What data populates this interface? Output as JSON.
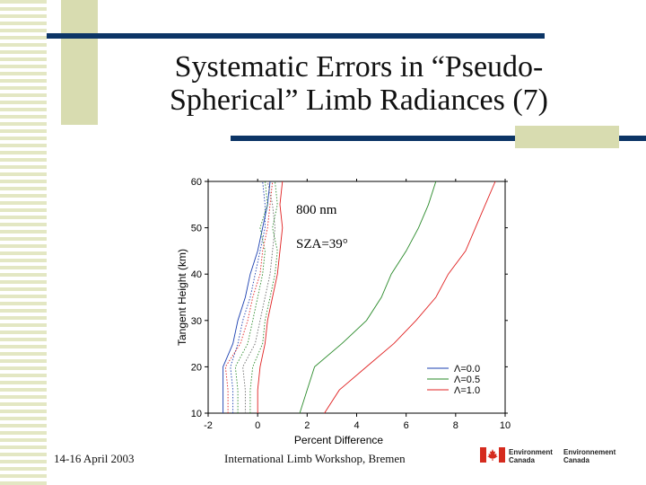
{
  "slide": {
    "title_line1": "Systematic Errors in “Pseudo-",
    "title_line2": "Spherical” Limb Radiances (7)",
    "date": "14-16 April 2003",
    "event": "International Limb Workshop, Bremen",
    "logo": {
      "en_line1": "Environment",
      "en_line2": "Canada",
      "fr_line1": "Environnement",
      "fr_line2": "Canada"
    }
  },
  "colors": {
    "bar": "#0c3566",
    "stripe": "#e3e7c3",
    "accent_block": "#d8dcb0"
  },
  "chart_data": {
    "type": "line",
    "xlabel": "Percent Difference",
    "ylabel": "Tangent Height (km)",
    "xlim": [
      -2,
      10
    ],
    "ylim": [
      10,
      60
    ],
    "xticks": [
      -2,
      0,
      2,
      4,
      6,
      8,
      10
    ],
    "yticks": [
      10,
      20,
      30,
      40,
      50,
      60
    ],
    "annotations": [
      "800 nm",
      "SZA=39°"
    ],
    "legend_position": "bottom-right",
    "series": [
      {
        "name": "Λ=0.0",
        "color": "#1a3fb0",
        "style": "solid",
        "points": [
          [
            -1.4,
            10
          ],
          [
            -1.4,
            20
          ],
          [
            -1.0,
            25
          ],
          [
            -0.8,
            30
          ],
          [
            -0.5,
            35
          ],
          [
            -0.3,
            40
          ],
          [
            0.0,
            45
          ],
          [
            0.2,
            50
          ],
          [
            0.4,
            55
          ],
          [
            0.5,
            60
          ]
        ]
      },
      {
        "name": "Λ=0.5",
        "color": "#2a8a2a",
        "style": "solid",
        "points": [
          [
            1.7,
            10
          ],
          [
            2.0,
            15
          ],
          [
            2.3,
            20
          ],
          [
            3.4,
            25
          ],
          [
            4.4,
            30
          ],
          [
            5.0,
            35
          ],
          [
            5.4,
            40
          ],
          [
            6.0,
            45
          ],
          [
            6.5,
            50
          ],
          [
            6.9,
            55
          ],
          [
            7.2,
            60
          ]
        ]
      },
      {
        "name": "Λ=1.0",
        "color": "#e02020",
        "style": "solid",
        "points": [
          [
            2.7,
            10
          ],
          [
            3.3,
            15
          ],
          [
            4.4,
            20
          ],
          [
            5.5,
            25
          ],
          [
            6.4,
            30
          ],
          [
            7.2,
            35
          ],
          [
            7.7,
            40
          ],
          [
            8.4,
            45
          ],
          [
            8.8,
            50
          ],
          [
            9.2,
            55
          ],
          [
            9.6,
            60
          ]
        ]
      },
      {
        "color": "#1a3fb0",
        "style": "dotted",
        "points": [
          [
            -1.0,
            10
          ],
          [
            -1.0,
            15
          ],
          [
            -1.1,
            20
          ],
          [
            -0.8,
            25
          ],
          [
            -0.6,
            30
          ],
          [
            -0.3,
            35
          ],
          [
            -0.1,
            40
          ],
          [
            0.1,
            45
          ],
          [
            0.3,
            50
          ],
          [
            0.3,
            55
          ],
          [
            0.2,
            60
          ]
        ]
      },
      {
        "color": "#2a8a2a",
        "style": "dotted",
        "points": [
          [
            -0.8,
            10
          ],
          [
            -0.8,
            15
          ],
          [
            -0.9,
            20
          ],
          [
            -0.4,
            25
          ],
          [
            -0.2,
            30
          ],
          [
            0.0,
            35
          ],
          [
            0.2,
            40
          ],
          [
            0.3,
            45
          ],
          [
            0.1,
            50
          ],
          [
            0.4,
            55
          ],
          [
            0.3,
            60
          ]
        ]
      },
      {
        "color": "#e02020",
        "style": "dotted",
        "points": [
          [
            -1.2,
            10
          ],
          [
            -1.2,
            15
          ],
          [
            -1.3,
            20
          ],
          [
            -0.7,
            25
          ],
          [
            -0.4,
            30
          ],
          [
            -0.2,
            35
          ],
          [
            0.1,
            40
          ],
          [
            0.2,
            45
          ],
          [
            0.4,
            50
          ],
          [
            0.5,
            55
          ],
          [
            0.6,
            60
          ]
        ]
      },
      {
        "color": "#6a6a6a",
        "style": "dotted",
        "points": [
          [
            -0.5,
            10
          ],
          [
            -0.5,
            15
          ],
          [
            -0.6,
            20
          ],
          [
            -0.1,
            25
          ],
          [
            0.1,
            30
          ],
          [
            0.3,
            35
          ],
          [
            0.5,
            40
          ],
          [
            0.6,
            45
          ],
          [
            0.7,
            50
          ],
          [
            0.6,
            55
          ],
          [
            0.4,
            60
          ]
        ]
      },
      {
        "color": "#2a8a2a",
        "style": "dotted",
        "points": [
          [
            -0.3,
            10
          ],
          [
            -0.3,
            15
          ],
          [
            -0.2,
            20
          ],
          [
            0.2,
            25
          ],
          [
            0.3,
            30
          ],
          [
            0.5,
            35
          ],
          [
            0.7,
            40
          ],
          [
            0.8,
            45
          ],
          [
            0.6,
            50
          ],
          [
            0.8,
            55
          ],
          [
            0.7,
            60
          ]
        ]
      },
      {
        "color": "#e02020",
        "style": "solid",
        "points": [
          [
            0.0,
            10
          ],
          [
            0.0,
            15
          ],
          [
            0.1,
            20
          ],
          [
            0.3,
            25
          ],
          [
            0.4,
            30
          ],
          [
            0.6,
            35
          ],
          [
            0.8,
            40
          ],
          [
            0.9,
            45
          ],
          [
            1.0,
            50
          ],
          [
            0.9,
            55
          ],
          [
            1.0,
            60
          ]
        ]
      }
    ]
  }
}
